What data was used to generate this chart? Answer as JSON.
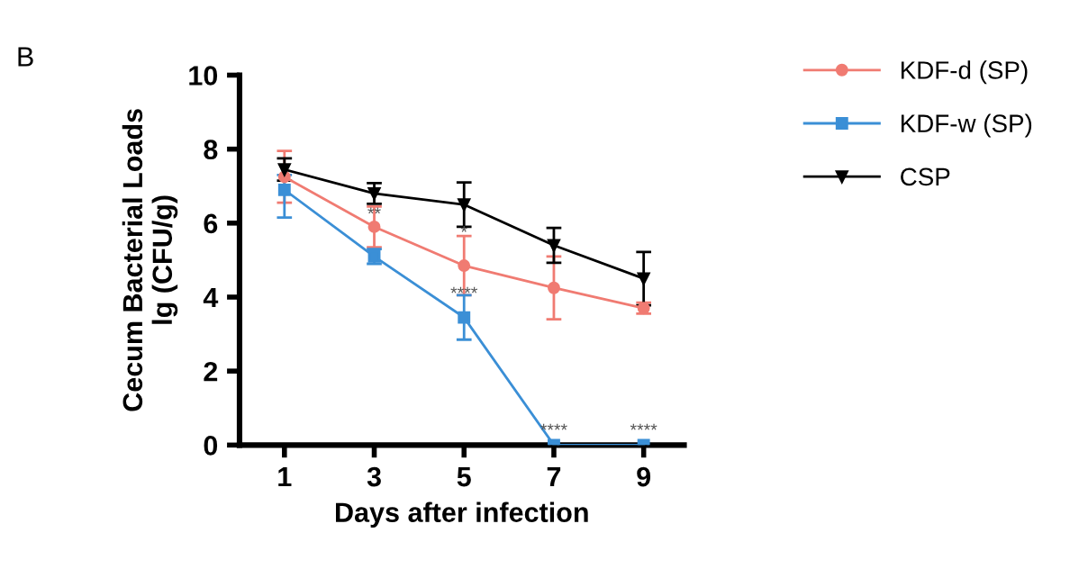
{
  "chart_data": {
    "type": "line",
    "xlabel": "Days after infection",
    "ylabel": "Cecum Bacterial Loads\nlg (CFU/g)",
    "x": [
      1,
      3,
      5,
      7,
      9
    ],
    "series": [
      {
        "name": "KDF-d (SP)",
        "color": "#f07b72",
        "marker": "circle",
        "values": [
          7.25,
          5.9,
          4.85,
          4.25,
          3.7
        ],
        "errors": [
          0.7,
          0.55,
          0.8,
          0.85,
          0.15
        ]
      },
      {
        "name": "KDF-w (SP)",
        "color": "#3b8fd6",
        "marker": "square",
        "values": [
          6.9,
          5.1,
          3.45,
          0,
          0
        ],
        "errors": [
          [
            6.15,
            7.3
          ],
          0.2,
          0.6,
          null,
          null
        ]
      },
      {
        "name": "CSP",
        "color": "#000000",
        "marker": "triangle",
        "values": [
          7.45,
          6.8,
          6.5,
          5.4,
          4.5
        ],
        "errors": [
          0.3,
          0.28,
          0.6,
          0.47,
          0.72
        ]
      }
    ],
    "xlim": [
      0,
      9.9
    ],
    "xticks": [
      1,
      3,
      5,
      7,
      9
    ],
    "ylim": [
      0,
      10
    ],
    "yticks": [
      0,
      2,
      4,
      6,
      8,
      10
    ],
    "grid": false,
    "legend": "right",
    "annotations": [
      "B",
      {
        "text": "**",
        "x": 3,
        "y": 6.0
      },
      {
        "text": "*",
        "x": 5,
        "y": 5.5
      },
      {
        "text": "****",
        "x": 5,
        "y": 3.85
      },
      {
        "text": "****",
        "x": 7,
        "y": 0.15
      },
      {
        "text": "****",
        "x": 9,
        "y": 0.15
      }
    ]
  }
}
